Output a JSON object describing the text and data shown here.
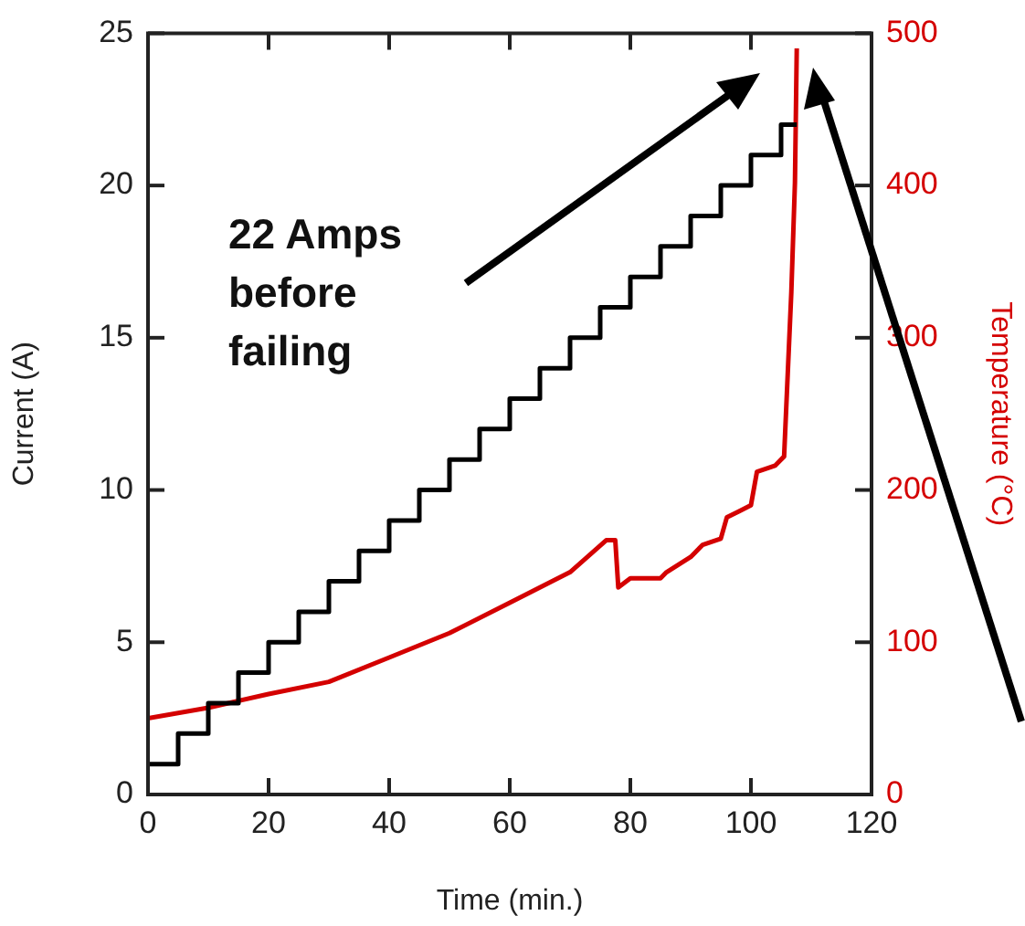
{
  "chart_data": {
    "type": "line",
    "xlabel": "Time (min.)",
    "ylabel": "Current (A)",
    "y2label": "Temperature (°C)",
    "xlim": [
      0,
      120
    ],
    "xticks": [
      0,
      20,
      40,
      60,
      80,
      100,
      120
    ],
    "ylim": [
      0,
      25
    ],
    "yticks": [
      0,
      5,
      10,
      15,
      20,
      25
    ],
    "y2lim": [
      0,
      500
    ],
    "y2ticks": [
      0,
      100,
      200,
      300,
      400,
      500
    ],
    "grid": false,
    "legend": false,
    "marker": "none",
    "line_style": "solid",
    "annotations": [
      "22 Amps before failing"
    ],
    "series": [
      {
        "type": "step",
        "color": "#000000",
        "x": [
          0,
          5,
          10,
          15,
          20,
          25,
          30,
          35,
          40,
          45,
          50,
          55,
          60,
          65,
          70,
          75,
          80,
          85,
          90,
          95,
          100,
          105,
          107.6
        ],
        "values": [
          1,
          2,
          3,
          4,
          5,
          6,
          7,
          8,
          9,
          10,
          11,
          12,
          13,
          14,
          15,
          16,
          17,
          18,
          19,
          20,
          21,
          22,
          22
        ]
      },
      {
        "type": "line",
        "axis": "y2",
        "color": "#d40000",
        "x": [
          0,
          10,
          20,
          30,
          40,
          50,
          60,
          70,
          76,
          77.5,
          78,
          80,
          85,
          86,
          90,
          92,
          95,
          96,
          98,
          100,
          101,
          104,
          105.5,
          106.7,
          107.3,
          107.6
        ],
        "values": [
          50,
          57,
          66,
          74,
          90,
          106,
          126,
          146,
          167,
          167,
          136,
          142,
          142,
          146,
          156,
          164,
          168,
          182,
          186,
          190,
          212,
          216,
          222,
          330,
          402,
          490
        ]
      }
    ]
  }
}
